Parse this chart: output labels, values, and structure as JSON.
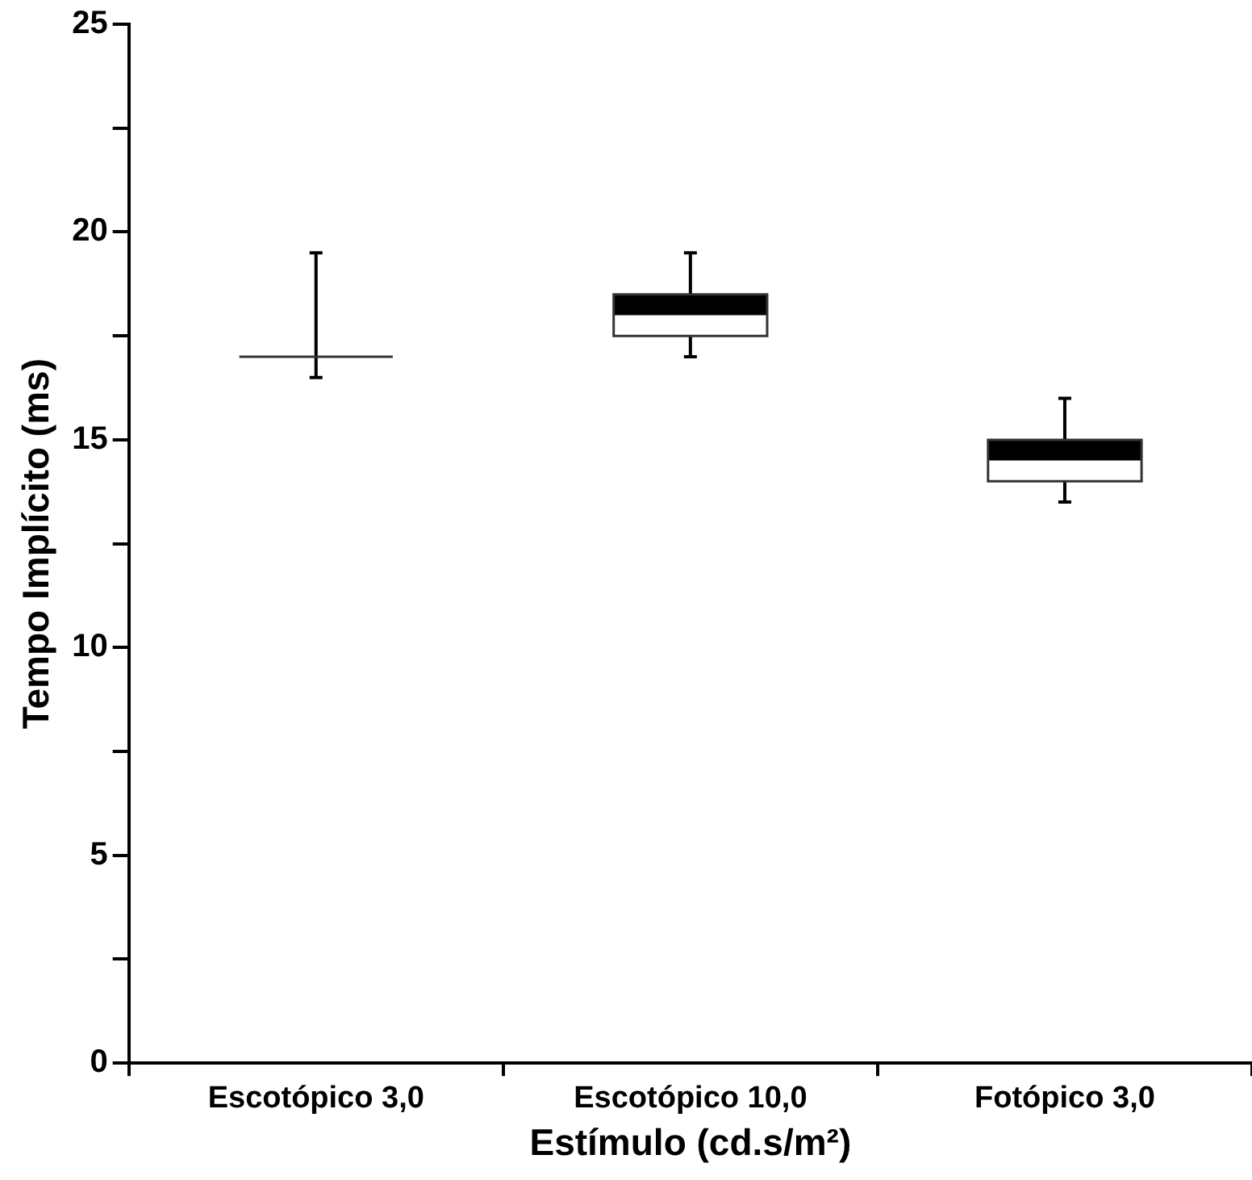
{
  "chart_data": {
    "type": "box",
    "xlabel": "Estímulo (cd.s/m²)",
    "ylabel": "Tempo Implícito (ms)",
    "categories": [
      "Escotópico 3,0",
      "Escotópico 10,0",
      "Fotópico 3,0"
    ],
    "boxes": [
      {
        "low": 16.5,
        "q1": 17,
        "median": 17,
        "q3": 17,
        "high": 19.5
      },
      {
        "low": 17,
        "q1": 17.5,
        "median": 18,
        "q3": 18.5,
        "high": 19.5
      },
      {
        "low": 13.5,
        "q1": 14,
        "median": 14.5,
        "q3": 15,
        "high": 16
      }
    ],
    "ylim": [
      0,
      25
    ],
    "yticks": [
      0,
      {
        "value": 2.5,
        "label": null
      },
      5,
      {
        "value": 7.5,
        "label": null
      },
      10,
      {
        "value": 12.5,
        "label": null
      },
      15,
      {
        "value": 17.5,
        "label": null
      },
      20,
      {
        "value": 22.5,
        "label": null
      },
      25
    ],
    "grid": false,
    "legend": false
  }
}
